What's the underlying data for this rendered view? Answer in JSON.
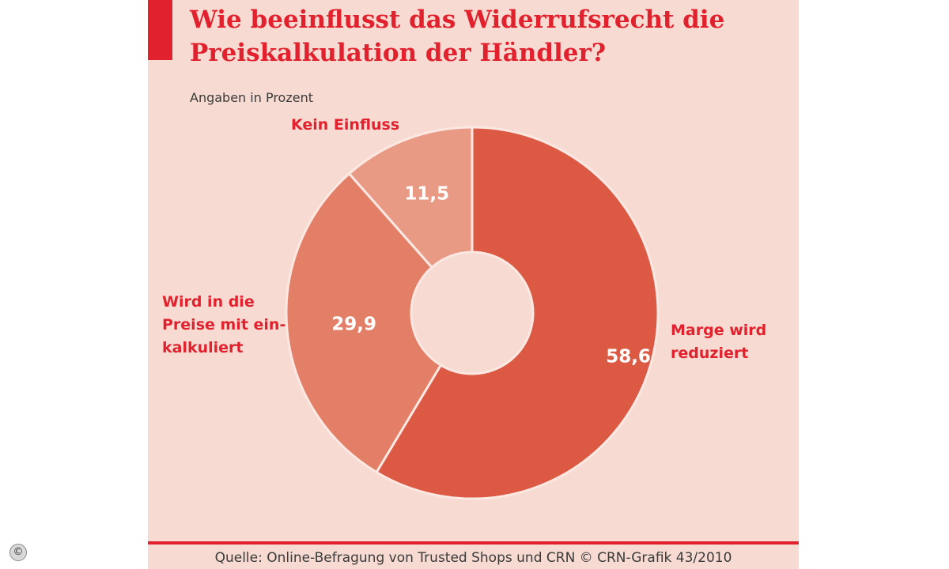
{
  "title": "Wie beeinflusst das Widerrufsrecht die Preiskalkulation der Händler?",
  "subtitle": "Angaben in Prozent",
  "source": "Quelle: Online-Befragung von Trusted Shops und CRN © CRN-Grafik 43/2010",
  "copyright_symbol": "©",
  "colors": {
    "accent": "#e1222e",
    "background": "#f7dbd2"
  },
  "chart_data": {
    "type": "pie",
    "style": "donut",
    "title": "Wie beeinflusst das Widerrufsrecht die Preiskalkulation der Händler?",
    "subtitle": "Angaben in Prozent",
    "slices": [
      {
        "label": [
          "Marge wird",
          "reduziert"
        ],
        "value": 58.6,
        "value_label": "58,6",
        "color": "#dc5a43"
      },
      {
        "label": [
          "Wird in die",
          "Preise mit ein-",
          "kalkuliert"
        ],
        "value": 29.9,
        "value_label": "29,9",
        "color": "#e37f67"
      },
      {
        "label": [
          "Kein Einfluss"
        ],
        "value": 11.5,
        "value_label": "11,5",
        "color": "#e99a85"
      }
    ]
  }
}
